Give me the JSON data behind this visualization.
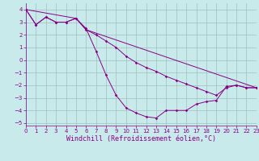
{
  "line1_x": [
    0,
    1,
    2,
    3,
    4,
    5,
    6,
    7,
    8,
    9,
    10,
    11,
    12,
    13,
    14,
    15,
    16,
    17,
    18,
    19,
    20,
    21,
    22,
    23
  ],
  "line1_y": [
    4.0,
    2.8,
    3.4,
    3.0,
    3.0,
    3.3,
    2.5,
    0.7,
    -1.2,
    -2.8,
    -3.8,
    -4.2,
    -4.5,
    -4.6,
    -4.0,
    -4.0,
    -4.0,
    -3.5,
    -3.3,
    -3.2,
    -2.1,
    -2.0,
    -2.2,
    -2.2
  ],
  "line2_x": [
    0,
    1,
    2,
    3,
    4,
    5,
    6,
    7,
    8,
    9,
    10,
    11,
    12,
    13,
    14,
    15,
    16,
    17,
    18,
    19,
    20,
    21,
    22,
    23
  ],
  "line2_y": [
    4.0,
    2.8,
    3.4,
    3.0,
    3.0,
    3.3,
    2.4,
    2.0,
    1.5,
    1.0,
    0.3,
    -0.2,
    -0.6,
    -0.9,
    -1.3,
    -1.6,
    -1.9,
    -2.2,
    -2.5,
    -2.8,
    -2.2,
    -2.0,
    -2.2,
    -2.2
  ],
  "line3_x": [
    0,
    5,
    6,
    23
  ],
  "line3_y": [
    4.0,
    3.3,
    2.4,
    -2.2
  ],
  "bg_color": "#c8eaea",
  "line_color": "#880088",
  "grid_color": "#a0c0c0",
  "axis_color": "#880088",
  "text_color": "#880088",
  "xlim": [
    0,
    23
  ],
  "ylim": [
    -5.2,
    4.5
  ],
  "yticks": [
    -5,
    -4,
    -3,
    -2,
    -1,
    0,
    1,
    2,
    3,
    4
  ],
  "xticks": [
    0,
    1,
    2,
    3,
    4,
    5,
    6,
    7,
    8,
    9,
    10,
    11,
    12,
    13,
    14,
    15,
    16,
    17,
    18,
    19,
    20,
    21,
    22,
    23
  ],
  "xlabel": "Windchill (Refroidissement éolien,°C)",
  "tick_fontsize": 5,
  "label_fontsize": 6
}
